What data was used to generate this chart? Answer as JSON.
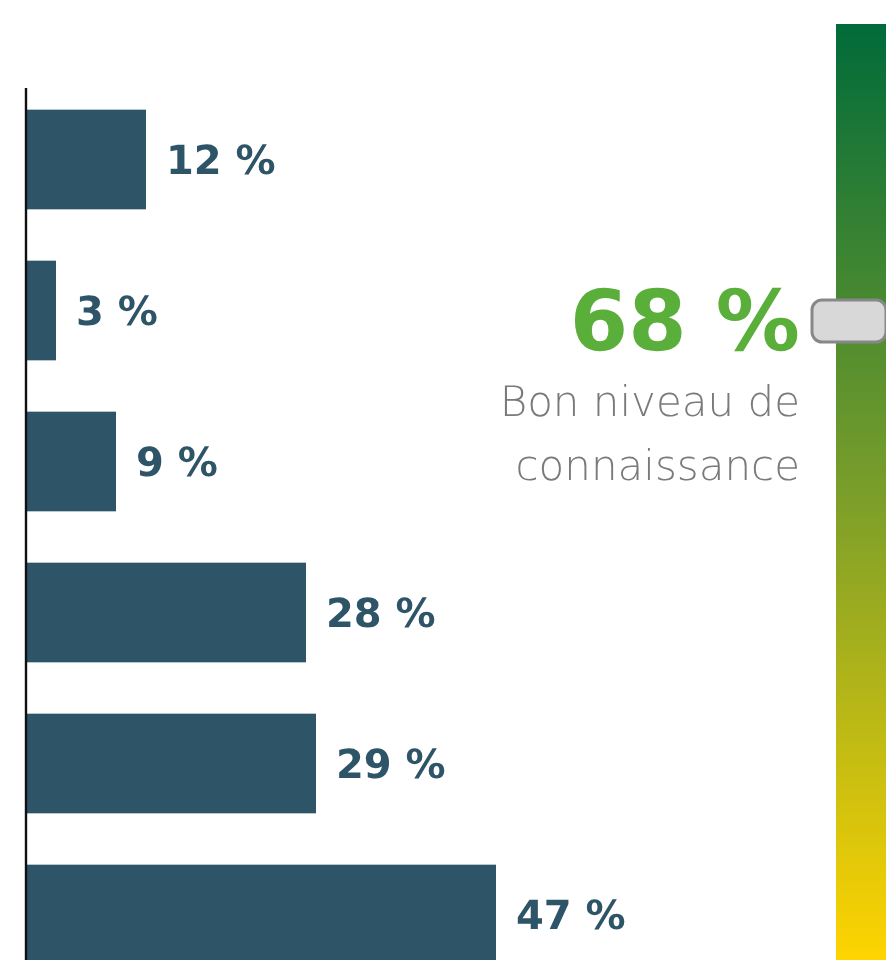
{
  "chart_data": {
    "type": "bar",
    "orientation": "horizontal",
    "categories": [
      null,
      null,
      null,
      null,
      null,
      null
    ],
    "values": [
      12,
      3,
      9,
      28,
      29,
      47
    ],
    "color": "#2e5468",
    "value_labels": [
      "12 %",
      "3 %",
      "9 %",
      "28 %",
      "29 %",
      "47 %"
    ],
    "annotations": [
      "68 %",
      "Bon niveau de connaissance"
    ]
  }
}
